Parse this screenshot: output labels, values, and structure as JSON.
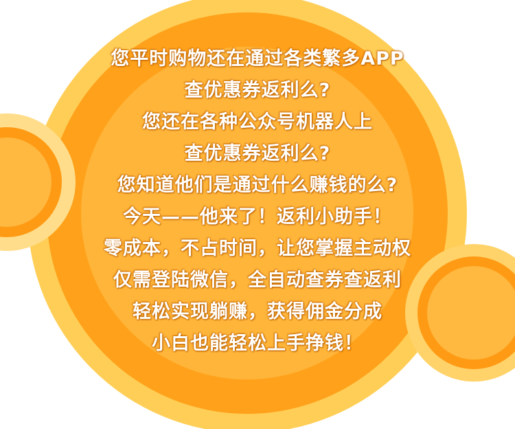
{
  "lines": [
    "您平时购物还在通过各类繁多APP",
    "查优惠券返利么?",
    "您还在各种公众号机器人上",
    "查优惠券返利么?",
    "您知道他们是通过什么赚钱的么?",
    "今天——他来了！返利小助手！",
    "零成本，不占时间，让您掌握主动权",
    "仅需登陆微信，全自动查券查返利",
    "轻松实现躺赚，获得佣金分成",
    "小白也能轻松上手挣钱！"
  ],
  "colors": {
    "text": "#ffffff",
    "background": "#ffffff",
    "circle_light": "#ffce57",
    "circle_dark": "#ffa11a",
    "circle_center": "#ffb53a"
  }
}
